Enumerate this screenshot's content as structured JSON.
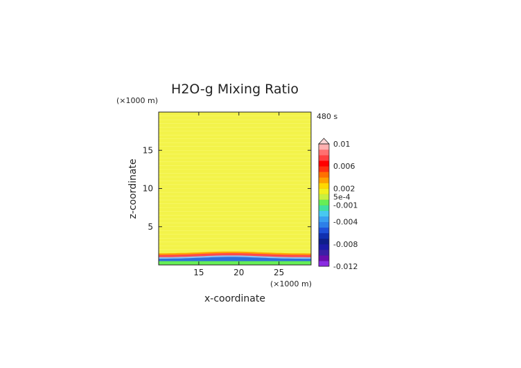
{
  "chart_data": {
    "type": "heatmap",
    "title": "H2O-g Mixing Ratio",
    "xlabel": "x-coordinate",
    "ylabel": "z-coordinate",
    "x_unit": "(×1000 m)",
    "y_unit": "(×1000 m)",
    "time_label": "480 s",
    "xlim": [
      10,
      29
    ],
    "ylim": [
      0,
      20
    ],
    "x_ticks": [
      "15",
      "20",
      "25"
    ],
    "y_ticks": [
      "5",
      "10",
      "15"
    ],
    "colorbar_labels": [
      "0.01",
      "0.006",
      "0.002",
      "5e-4",
      "-0.001",
      "-0.004",
      "-0.008",
      "-0.012"
    ],
    "colorbar_label_values": [
      0.01,
      0.006,
      0.002,
      0.0005,
      -0.001,
      -0.004,
      -0.008,
      -0.012
    ],
    "colorbar_range": [
      -0.012,
      0.01
    ],
    "colorbar_colors": [
      "#8a2be2",
      "#6a0dad",
      "#3b1fa6",
      "#1c1ca8",
      "#0e1f8a",
      "#1030b0",
      "#1e50d8",
      "#2d7fe8",
      "#3aa0f0",
      "#48c8f0",
      "#40e0a0",
      "#66ee55",
      "#c8f040",
      "#f0f020",
      "#ffd800",
      "#ffa000",
      "#ff7000",
      "#ff3010",
      "#ff0000",
      "#ff4040",
      "#ff7070",
      "#ffb0b0"
    ],
    "field": {
      "background_value": 0.0003,
      "background_color": "#f3f34a",
      "surface_layers": [
        {
          "z_bottom": 0.0,
          "z_top": 0.5,
          "color": "#66ee55"
        },
        {
          "z_bottom": 0.5,
          "z_top": 0.8,
          "color": "#2d6fdc"
        },
        {
          "z_bottom": 0.8,
          "z_top": 1.0,
          "color": "#8fbdf0"
        },
        {
          "z_bottom": 1.0,
          "z_top": 1.3,
          "color": "#ff4a4a"
        },
        {
          "z_bottom": 1.3,
          "z_top": 1.5,
          "color": "#ffa000"
        }
      ],
      "bump_center_x": 19,
      "bump_height_z": 0.25
    }
  }
}
